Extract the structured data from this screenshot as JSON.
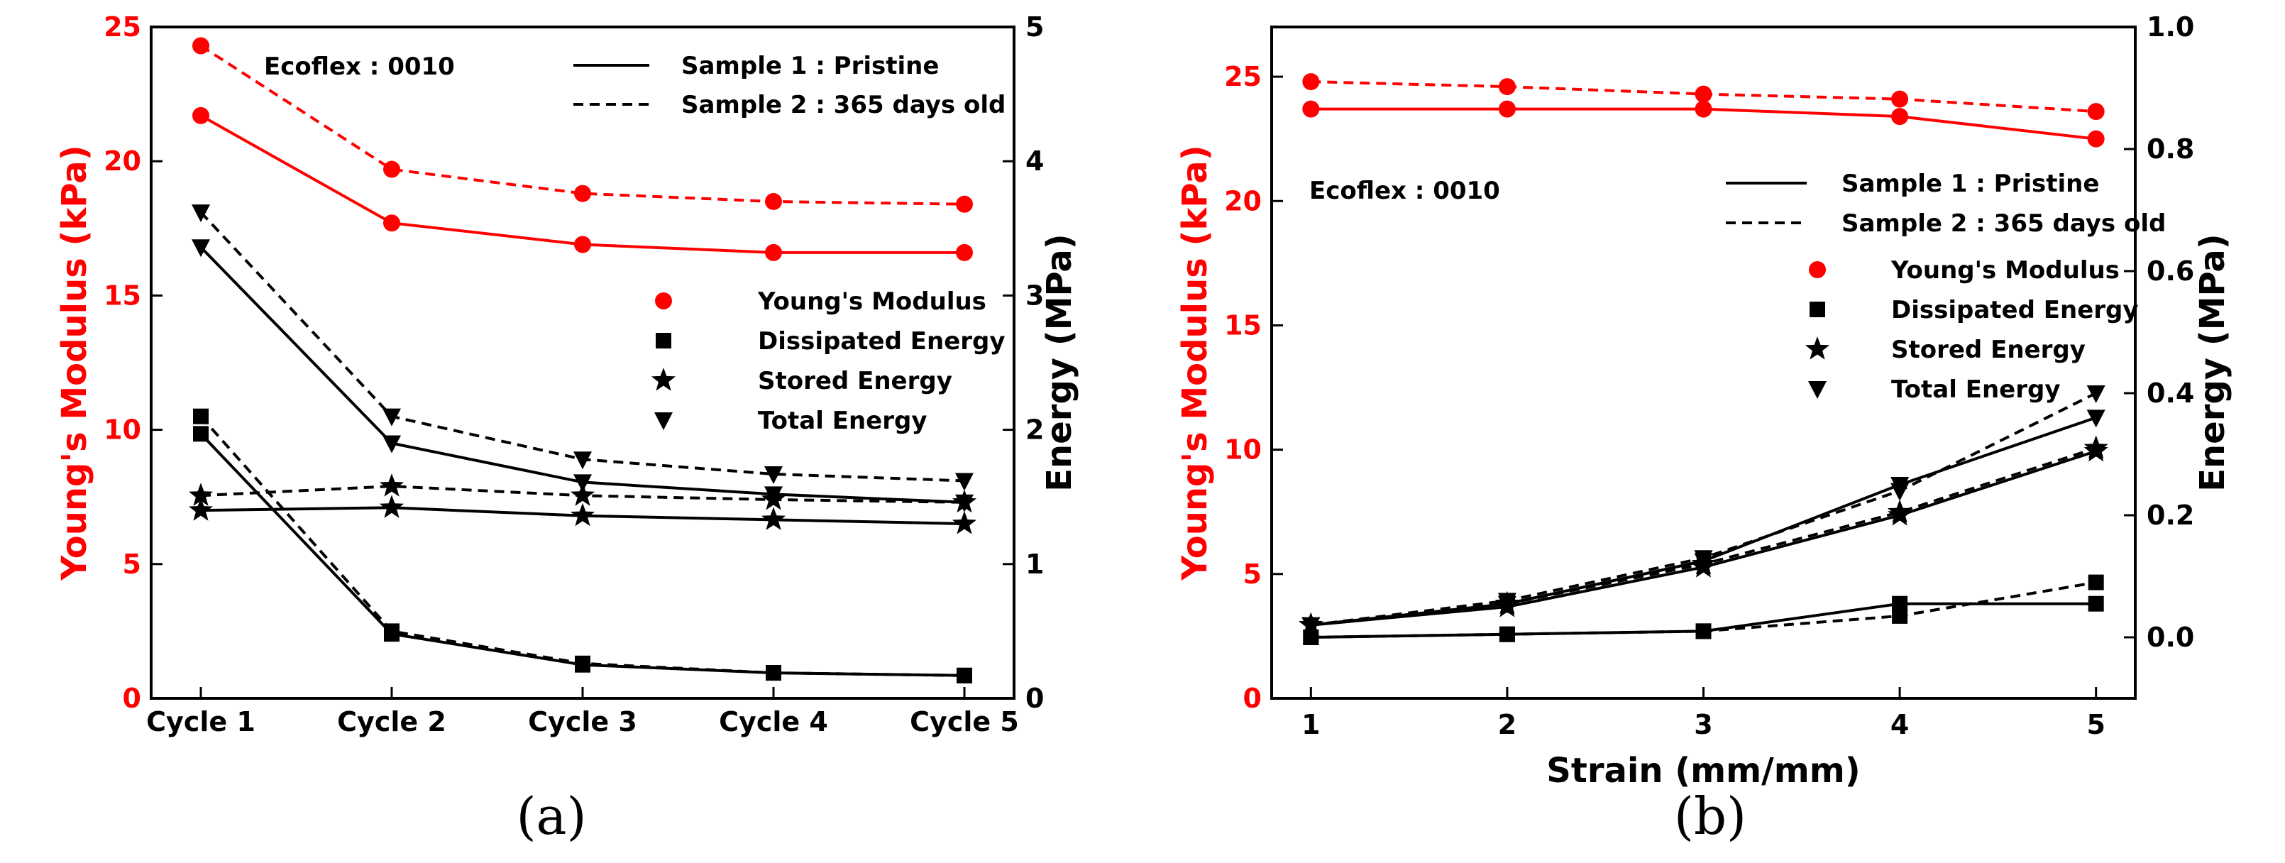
{
  "chart_data": [
    {
      "type": "line",
      "caption": "(a)",
      "annotation": "Ecoflex : 0010",
      "x_is_categorical": true,
      "categories": [
        "Cycle 1",
        "Cycle 2",
        "Cycle 3",
        "Cycle 4",
        "Cycle 5"
      ],
      "xlabel": "",
      "ylabel_left": "Young's Modulus (kPa)",
      "ylabel_right": "Energy (MPa)",
      "ylim_left": [
        0,
        25
      ],
      "ylim_right": [
        0,
        5
      ],
      "yticks_left": [
        0,
        5,
        10,
        15,
        20,
        25
      ],
      "yticks_right": [
        0,
        1,
        2,
        3,
        4,
        5
      ],
      "legend_samples": [
        {
          "label": "Sample 1 : Pristine",
          "style": "solid"
        },
        {
          "label": "Sample 2 : 365 days old",
          "style": "dashed"
        }
      ],
      "legend_markers": [
        {
          "label": "Young's Modulus",
          "marker": "circle",
          "color": "#ff0000"
        },
        {
          "label": "Dissipated Energy",
          "marker": "square",
          "color": "#000000"
        },
        {
          "label": "Stored Energy",
          "marker": "star",
          "color": "#000000"
        },
        {
          "label": "Total Energy",
          "marker": "triangle-down",
          "color": "#000000"
        }
      ],
      "series": [
        {
          "name": "Young's Modulus - Sample 1",
          "axis": "left",
          "marker": "circle",
          "color": "#ff0000",
          "style": "solid",
          "values": [
            21.7,
            17.7,
            16.9,
            16.6,
            16.6
          ]
        },
        {
          "name": "Young's Modulus - Sample 2",
          "axis": "left",
          "marker": "circle",
          "color": "#ff0000",
          "style": "dashed",
          "values": [
            24.3,
            19.7,
            18.8,
            18.5,
            18.4
          ]
        },
        {
          "name": "Total Energy - Sample 1",
          "axis": "right",
          "marker": "triangle-down",
          "color": "#000000",
          "style": "solid",
          "values": [
            3.36,
            1.9,
            1.61,
            1.52,
            1.46
          ]
        },
        {
          "name": "Total Energy - Sample 2",
          "axis": "right",
          "marker": "triangle-down",
          "color": "#000000",
          "style": "dashed",
          "values": [
            3.62,
            2.1,
            1.78,
            1.67,
            1.62
          ]
        },
        {
          "name": "Dissipated Energy - Sample 1",
          "axis": "right",
          "marker": "square",
          "color": "#000000",
          "style": "solid",
          "values": [
            1.97,
            0.48,
            0.25,
            0.19,
            0.17
          ]
        },
        {
          "name": "Dissipated Energy - Sample 2",
          "axis": "right",
          "marker": "square",
          "color": "#000000",
          "style": "dashed",
          "values": [
            2.1,
            0.5,
            0.26,
            0.19,
            0.17
          ]
        },
        {
          "name": "Stored Energy - Sample 1",
          "axis": "right",
          "marker": "star",
          "color": "#000000",
          "style": "solid",
          "values": [
            1.4,
            1.42,
            1.36,
            1.33,
            1.3
          ]
        },
        {
          "name": "Stored Energy - Sample 2",
          "axis": "right",
          "marker": "star",
          "color": "#000000",
          "style": "dashed",
          "values": [
            1.51,
            1.58,
            1.51,
            1.48,
            1.46
          ]
        }
      ]
    },
    {
      "type": "line",
      "caption": "(b)",
      "annotation": "Ecoflex : 0010",
      "x_is_categorical": false,
      "x": [
        1,
        2,
        3,
        4,
        5
      ],
      "xlim": [
        0.8,
        5.2
      ],
      "xticks": [
        1,
        2,
        3,
        4,
        5
      ],
      "xlabel": "Strain (mm/mm)",
      "ylabel_left": "Young's Modulus (kPa)",
      "ylabel_right": "Energy (MPa)",
      "ylim_left": [
        0,
        27
      ],
      "ylim_right": [
        -0.1,
        1.0
      ],
      "yticks_left": [
        0,
        5,
        10,
        15,
        20,
        25
      ],
      "yticks_right": [
        0.0,
        0.2,
        0.4,
        0.6,
        0.8,
        1.0
      ],
      "yticks_right_labels": [
        "0.0",
        "0.2",
        "0.4",
        "0.6",
        "0.8",
        "1.0"
      ],
      "legend_samples": [
        {
          "label": "Sample 1 : Pristine",
          "style": "solid"
        },
        {
          "label": "Sample 2 : 365 days old",
          "style": "dashed"
        }
      ],
      "legend_markers": [
        {
          "label": "Young's Modulus",
          "marker": "circle",
          "color": "#ff0000"
        },
        {
          "label": "Dissipated Energy",
          "marker": "square",
          "color": "#000000"
        },
        {
          "label": "Stored Energy",
          "marker": "star",
          "color": "#000000"
        },
        {
          "label": "Total Energy",
          "marker": "triangle-down",
          "color": "#000000"
        }
      ],
      "series": [
        {
          "name": "Young's Modulus - Sample 1",
          "axis": "left",
          "marker": "circle",
          "color": "#ff0000",
          "style": "solid",
          "values": [
            23.7,
            23.7,
            23.7,
            23.4,
            22.5
          ]
        },
        {
          "name": "Young's Modulus - Sample 2",
          "axis": "left",
          "marker": "circle",
          "color": "#ff0000",
          "style": "dashed",
          "values": [
            24.8,
            24.6,
            24.3,
            24.1,
            23.6
          ]
        },
        {
          "name": "Total Energy - Sample 1",
          "axis": "right",
          "marker": "triangle-down",
          "color": "#000000",
          "style": "solid",
          "values": [
            0.02,
            0.055,
            0.125,
            0.25,
            0.36
          ]
        },
        {
          "name": "Total Energy - Sample 2",
          "axis": "right",
          "marker": "triangle-down",
          "color": "#000000",
          "style": "dashed",
          "values": [
            0.02,
            0.06,
            0.13,
            0.24,
            0.4
          ]
        },
        {
          "name": "Dissipated Energy - Sample 1",
          "axis": "right",
          "marker": "square",
          "color": "#000000",
          "style": "solid",
          "values": [
            0.0,
            0.005,
            0.01,
            0.055,
            0.055
          ]
        },
        {
          "name": "Dissipated Energy - Sample 2",
          "axis": "right",
          "marker": "square",
          "color": "#000000",
          "style": "dashed",
          "values": [
            0.0,
            0.005,
            0.01,
            0.035,
            0.09
          ]
        },
        {
          "name": "Stored Energy - Sample 1",
          "axis": "right",
          "marker": "star",
          "color": "#000000",
          "style": "solid",
          "values": [
            0.02,
            0.05,
            0.115,
            0.2,
            0.305
          ]
        },
        {
          "name": "Stored Energy - Sample 2",
          "axis": "right",
          "marker": "star",
          "color": "#000000",
          "style": "dashed",
          "values": [
            0.02,
            0.055,
            0.12,
            0.205,
            0.31
          ]
        }
      ]
    }
  ]
}
